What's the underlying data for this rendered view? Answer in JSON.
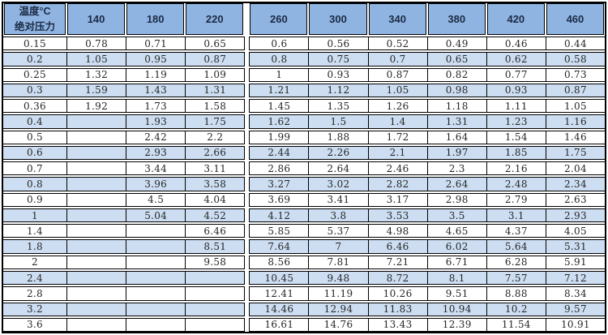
{
  "chart_data": {
    "type": "table",
    "corner": {
      "line1": "温度°C",
      "line2": "绝对压力"
    },
    "columns": [
      "140",
      "180",
      "220",
      "260",
      "300",
      "340",
      "380",
      "420",
      "460"
    ],
    "rows": [
      {
        "pressure": "0.15",
        "values": [
          "0.78",
          "0.71",
          "0.65",
          "0.6",
          "0.56",
          "0.52",
          "0.49",
          "0.46",
          "0.44"
        ]
      },
      {
        "pressure": "0.2",
        "values": [
          "1.05",
          "0.95",
          "0.87",
          "0.8",
          "0.75",
          "0.7",
          "0.65",
          "0.62",
          "0.58"
        ]
      },
      {
        "pressure": "0.25",
        "values": [
          "1.32",
          "1.19",
          "1.09",
          "1",
          "0.93",
          "0.87",
          "0.82",
          "0.77",
          "0.73"
        ]
      },
      {
        "pressure": "0.3",
        "values": [
          "1.59",
          "1.43",
          "1.31",
          "1.21",
          "1.12",
          "1.05",
          "0.98",
          "0.93",
          "0.87"
        ]
      },
      {
        "pressure": "0.36",
        "values": [
          "1.92",
          "1.73",
          "1.58",
          "1.45",
          "1.35",
          "1.26",
          "1.18",
          "1.11",
          "1.05"
        ]
      },
      {
        "pressure": "0.4",
        "values": [
          "",
          "1.93",
          "1.75",
          "1.62",
          "1.5",
          "1.4",
          "1.31",
          "1.23",
          "1.16"
        ]
      },
      {
        "pressure": "0.5",
        "values": [
          "",
          "2.42",
          "2.2",
          "1.99",
          "1.88",
          "1.72",
          "1.64",
          "1.54",
          "1.46"
        ]
      },
      {
        "pressure": "0.6",
        "values": [
          "",
          "2.93",
          "2.66",
          "2.44",
          "2.26",
          "2.1",
          "1.97",
          "1.85",
          "1.75"
        ]
      },
      {
        "pressure": "0.7",
        "values": [
          "",
          "3.44",
          "3.11",
          "2.86",
          "2.64",
          "2.46",
          "2.3",
          "2.16",
          "2.04"
        ]
      },
      {
        "pressure": "0.8",
        "values": [
          "",
          "3.96",
          "3.58",
          "3.27",
          "3.02",
          "2.82",
          "2.64",
          "2.48",
          "2.34"
        ]
      },
      {
        "pressure": "0.9",
        "values": [
          "",
          "4.5",
          "4.04",
          "3.69",
          "3.41",
          "3.17",
          "2.98",
          "2.79",
          "2.63"
        ]
      },
      {
        "pressure": "1",
        "values": [
          "",
          "5.04",
          "4.52",
          "4.12",
          "3.8",
          "3.53",
          "3.5",
          "3.1",
          "2.93"
        ]
      },
      {
        "pressure": "1.4",
        "values": [
          "",
          "",
          "6.46",
          "5.85",
          "5.37",
          "4.98",
          "4.65",
          "4.37",
          "4.05"
        ]
      },
      {
        "pressure": "1.8",
        "values": [
          "",
          "",
          "8.51",
          "7.64",
          "7",
          "6.46",
          "6.02",
          "5.64",
          "5.31"
        ]
      },
      {
        "pressure": "2",
        "values": [
          "",
          "",
          "9.58",
          "8.56",
          "7.81",
          "7.21",
          "6.71",
          "6.28",
          "5.91"
        ]
      },
      {
        "pressure": "2.4",
        "values": [
          "",
          "",
          "",
          "10.45",
          "9.48",
          "8.72",
          "8.1",
          "7.57",
          "7.12"
        ]
      },
      {
        "pressure": "2.8",
        "values": [
          "",
          "",
          "",
          "12.41",
          "11.19",
          "10.26",
          "9.51",
          "8.88",
          "8.34"
        ]
      },
      {
        "pressure": "3.2",
        "values": [
          "",
          "",
          "",
          "14.46",
          "12.94",
          "11.83",
          "10.94",
          "10.2",
          "9.57"
        ]
      },
      {
        "pressure": "3.6",
        "values": [
          "",
          "",
          "",
          "16.61",
          "14.76",
          "13.43",
          "12.39",
          "11.54",
          "10.91"
        ]
      }
    ],
    "layout": {
      "column_group_split_after": "220",
      "zebra_striping": true,
      "first_row_background": "white"
    }
  },
  "colors": {
    "header_bg": "#8FB4E2",
    "stripe_bg": "#CDDEF2",
    "border": "#000000",
    "header_text": "#1B2A44",
    "data_text": "#262626"
  }
}
